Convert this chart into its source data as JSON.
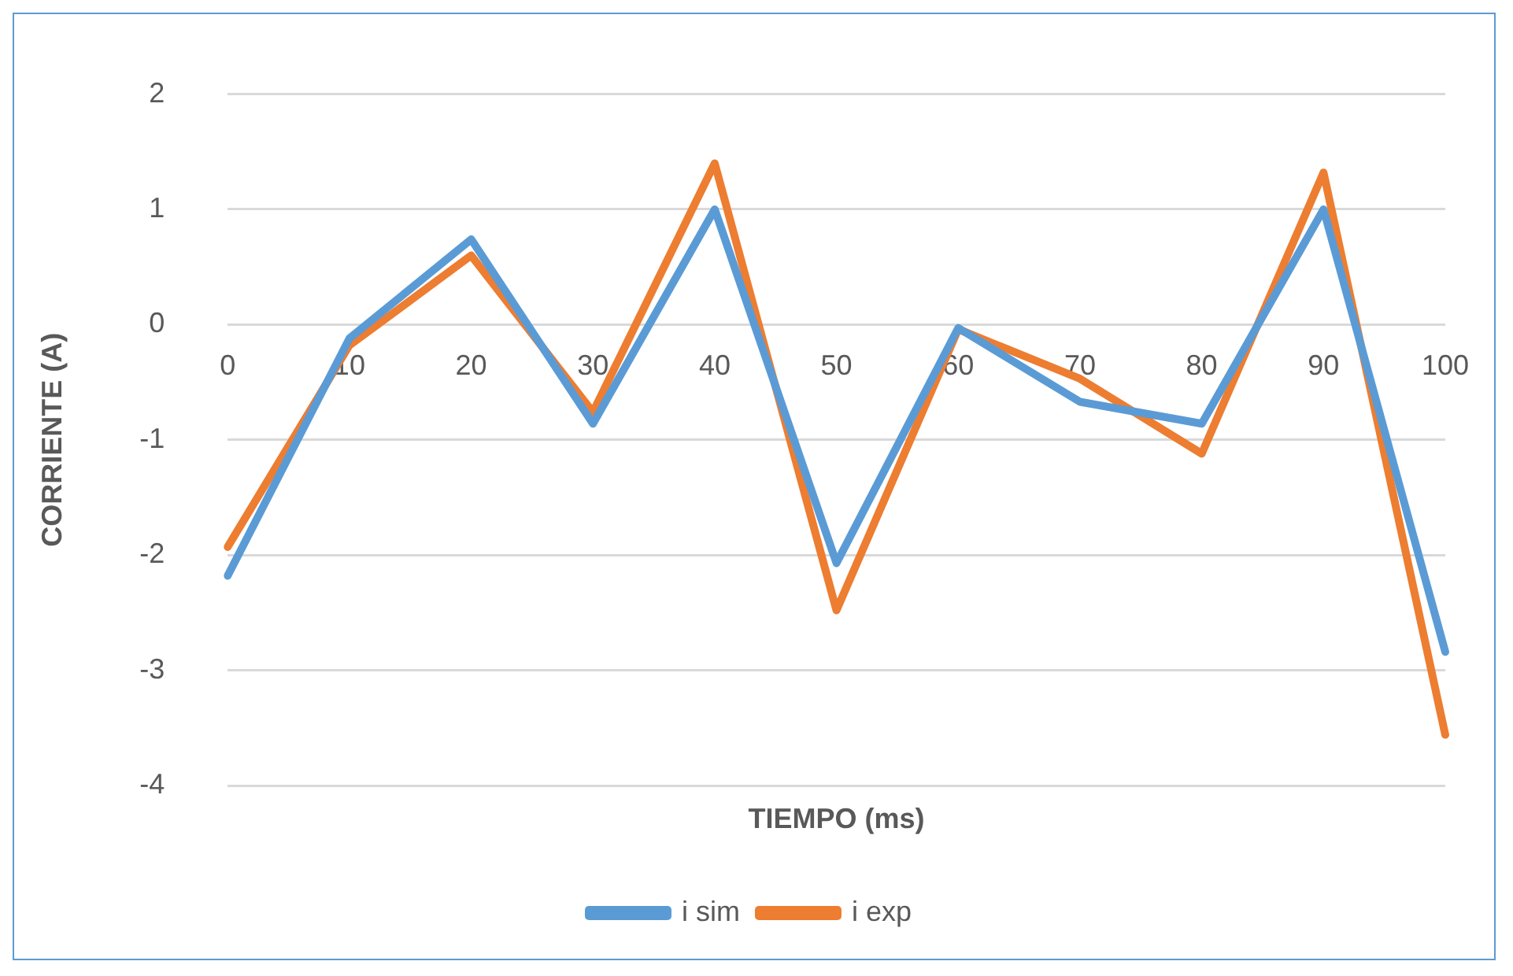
{
  "chart_data": {
    "type": "line",
    "xlabel": "TIEMPO (ms)",
    "ylabel": "CORRIENTE (A)",
    "categories": [
      "0",
      "10",
      "20",
      "30",
      "40",
      "50",
      "60",
      "70",
      "80",
      "90",
      "100"
    ],
    "series": [
      {
        "name": "i sim",
        "color": "#5b9bd5",
        "values": [
          -2.18,
          -0.12,
          0.74,
          -0.86,
          1.0,
          -2.07,
          -0.03,
          -0.67,
          -0.86,
          1.0,
          -2.84
        ]
      },
      {
        "name": "i exp",
        "color": "#ed7d31",
        "values": [
          -1.93,
          -0.18,
          0.6,
          -0.76,
          1.4,
          -2.48,
          -0.04,
          -0.47,
          -1.12,
          1.32,
          -3.56
        ]
      }
    ],
    "ylim": [
      -4,
      2
    ],
    "yticks": [
      -4,
      -3,
      -2,
      -1,
      0,
      1,
      2
    ],
    "grid": "y",
    "legend": "bottom",
    "marker": "none",
    "line_style": "solid"
  }
}
